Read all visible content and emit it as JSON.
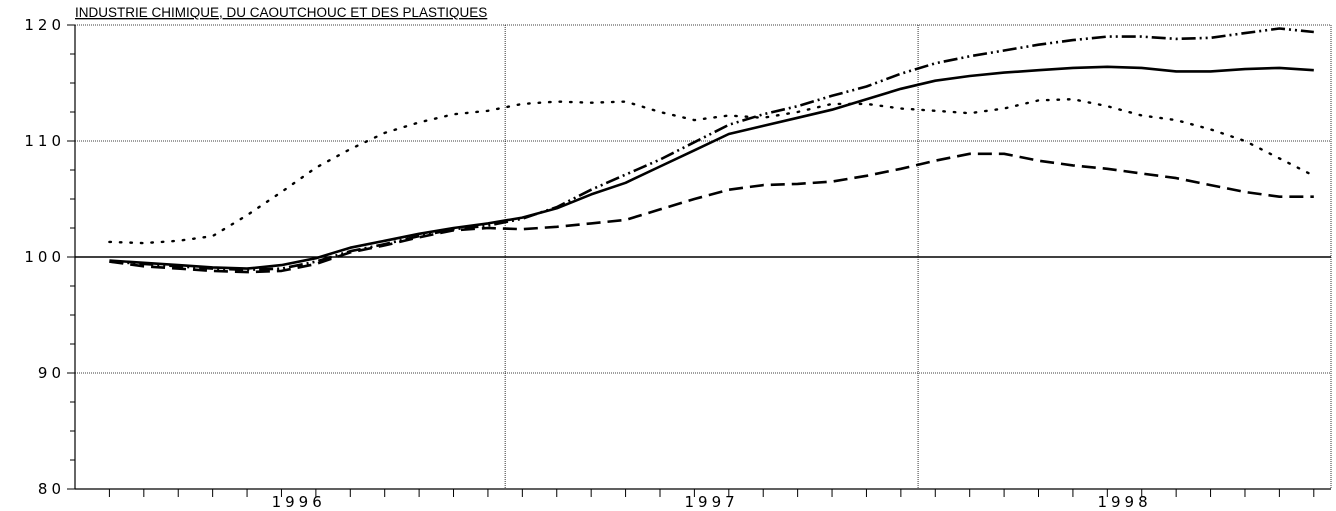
{
  "chart_data": {
    "type": "line",
    "title": "INDUSTRIE CHIMIQUE, DU CAOUTCHOUC ET DES PLASTIQUES",
    "xlabel": "",
    "ylabel": "",
    "ylim": [
      80,
      120
    ],
    "yticks": [
      "80",
      "90",
      "100",
      "110",
      "120"
    ],
    "xticks": [
      "1996",
      "1997",
      "1998"
    ],
    "x_months": [
      "1996-01",
      "1996-02",
      "1996-03",
      "1996-04",
      "1996-05",
      "1996-06",
      "1996-07",
      "1996-08",
      "1996-09",
      "1996-10",
      "1996-11",
      "1996-12",
      "1997-01",
      "1997-02",
      "1997-03",
      "1997-04",
      "1997-05",
      "1997-06",
      "1997-07",
      "1997-08",
      "1997-09",
      "1997-10",
      "1997-11",
      "1997-12",
      "1998-01",
      "1998-02",
      "1998-03",
      "1998-04",
      "1998-05",
      "1998-06",
      "1998-07",
      "1998-08",
      "1998-09",
      "1998-10",
      "1998-11",
      "1998-12"
    ],
    "grid": true,
    "reference_line": 100,
    "series": [
      {
        "style": "solid",
        "values": [
          99.7,
          99.5,
          99.3,
          99.1,
          99.0,
          99.3,
          99.9,
          100.8,
          101.4,
          102.0,
          102.5,
          102.9,
          103.4,
          104.2,
          105.4,
          106.4,
          107.8,
          109.2,
          110.6,
          111.3,
          112.0,
          112.7,
          113.6,
          114.5,
          115.2,
          115.6,
          115.9,
          116.1,
          116.3,
          116.4,
          116.3,
          116.0,
          116.0,
          116.2,
          116.3,
          116.1
        ]
      },
      {
        "style": "dash-dot",
        "values": [
          99.6,
          99.4,
          99.2,
          99.0,
          98.9,
          99.0,
          99.6,
          100.5,
          101.1,
          101.8,
          102.4,
          102.7,
          103.3,
          104.3,
          105.8,
          107.1,
          108.4,
          109.9,
          111.4,
          112.3,
          113.0,
          113.9,
          114.7,
          115.8,
          116.7,
          117.3,
          117.8,
          118.3,
          118.7,
          119.0,
          119.0,
          118.8,
          118.9,
          119.3,
          119.7,
          119.4
        ]
      },
      {
        "style": "dashed",
        "values": [
          99.6,
          99.2,
          99.0,
          98.8,
          98.7,
          98.8,
          99.4,
          100.4,
          101.0,
          101.7,
          102.3,
          102.5,
          102.4,
          102.6,
          102.9,
          103.2,
          104.1,
          105.0,
          105.8,
          106.2,
          106.3,
          106.5,
          107.0,
          107.6,
          108.3,
          108.9,
          108.9,
          108.3,
          107.9,
          107.6,
          107.2,
          106.8,
          106.2,
          105.6,
          105.2,
          105.2
        ]
      },
      {
        "style": "dotted",
        "values": [
          101.3,
          101.2,
          101.4,
          101.8,
          103.6,
          105.6,
          107.7,
          109.3,
          110.7,
          111.6,
          112.3,
          112.6,
          113.2,
          113.4,
          113.3,
          113.4,
          112.5,
          111.8,
          112.2,
          112.0,
          112.5,
          113.2,
          113.2,
          112.8,
          112.6,
          112.4,
          112.8,
          113.5,
          113.6,
          113.0,
          112.2,
          111.8,
          111.0,
          110.0,
          108.5,
          107.0
        ]
      }
    ]
  }
}
